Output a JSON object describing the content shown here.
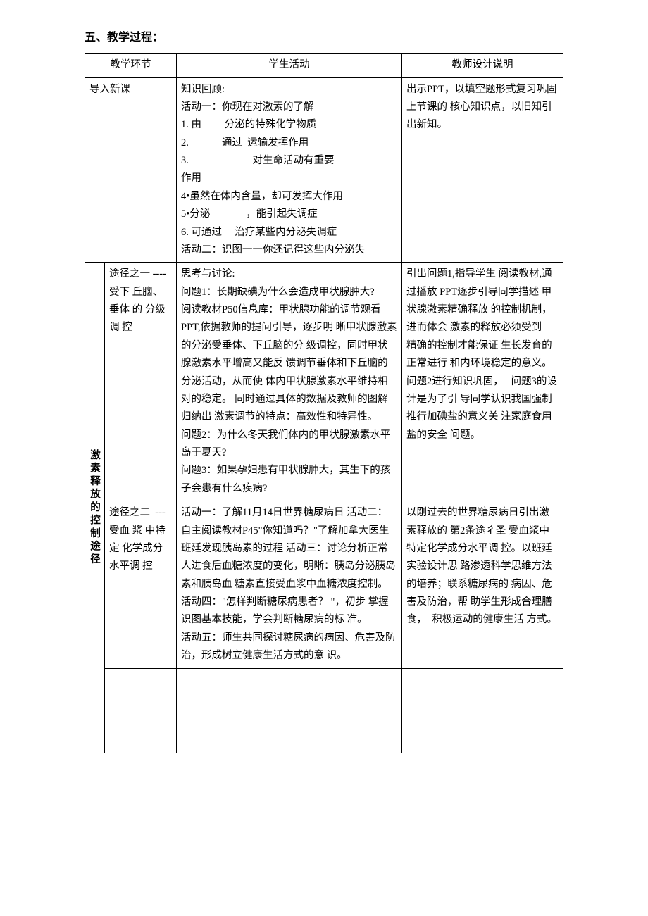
{
  "title": "五、教学过程：",
  "headers": {
    "section": "教学环节",
    "activity": "学生活动",
    "notes": "教师设计说明"
  },
  "row1": {
    "section": "导入新课",
    "activity": "知识回顾:\n活动一：你现在对激素的了解\n1. 由         分泌的特殊化学物质\n2.             通过  运输发挥作用\n3.                         对生命活动有重要                         作用\n4•虽然在体内含量，却可发挥大作用\n5•分泌              ，能引起失调症\n6. 可通过     治疗某些内分泌失调症\n活动二：识图一一你还记得这些内分泌失",
    "notes": "出示PPT，以填空题形式复习巩固上节课的 核心知识点，以旧知引 出新知。"
  },
  "row2": {
    "vlabel": "激素释放的控制途径",
    "subsection": "途径之一 ----受下 丘脑、垂体 的 分级调 控",
    "activity": "思考与讨论:\n问题1：长期缺碘为什么会造成甲状腺肿大?\n阅读教材P50信息库：甲状腺功能的调节观看PPT,依据教师的提问引导，逐步明 晰甲状腺激素的分泌受垂体、下丘脑的分 级调控，同时甲状腺激素水平增高又能反 馈调节垂体和下丘脑的分泌活动，从而使 体内甲状腺激素水平维持相对的稳定。 同时通过具体的数据及教师的图解归纳出 激素调节的特点：高效性和特异性。\n问题2：为什么冬天我们体内的甲状腺激素水平岛于夏天?\n问题3：如果孕妇患有甲状腺肿大，其生下的孩子会患有什么疾病?",
    "notes": "引出问题1,指导学生 阅读教材,通过播放 PPT逐步引导同学描述 甲状腺激素精确释放 的控制机制，进而体会 激素的释放必须受到    精确的控制才能保证 生长发育的正常进行 和内环境稳定的意义。问题2进行知识巩固，   问题3的设计是为了引 导同学认识我国强制    推行加碘盐的意义关 注家庭食用盐的安全 问题。"
  },
  "row3": {
    "subsection": "途径之二  ---受血 浆 中特定 化学成分 水平调 控",
    "activity": "活动一：了解11月14日世界糖尿病日 活动二：自主阅读教材P45\"你知道吗？\"了解加拿大医生班廷发现胰岛素的过程 活动三：讨论分析正常人进食后血糖浓度的变化，明晰：胰岛分泌胰岛素和胰岛血 糖素直接受血浆中血糖浓度控制。\n活动四：\"怎样判断糖尿病患者？ \"，初步 掌握识图基本技能，学会判断糖尿病的标 准。\n活动五：师生共同探讨糖尿病的病因、危害及防治，形成树立健康生活方式的意 识。",
    "notes": "以刚过去的世界糖尿病日引出激素释放的 第2条途彳圣 受血浆中 特定化学成分水平调 控。以班廷实验设计思 路渗透科学思维方法 的培养；联系糖尿病的 病因、危害及防治，帮 助学生形成合理膳食，  积极运动的健康生活 方式。"
  }
}
